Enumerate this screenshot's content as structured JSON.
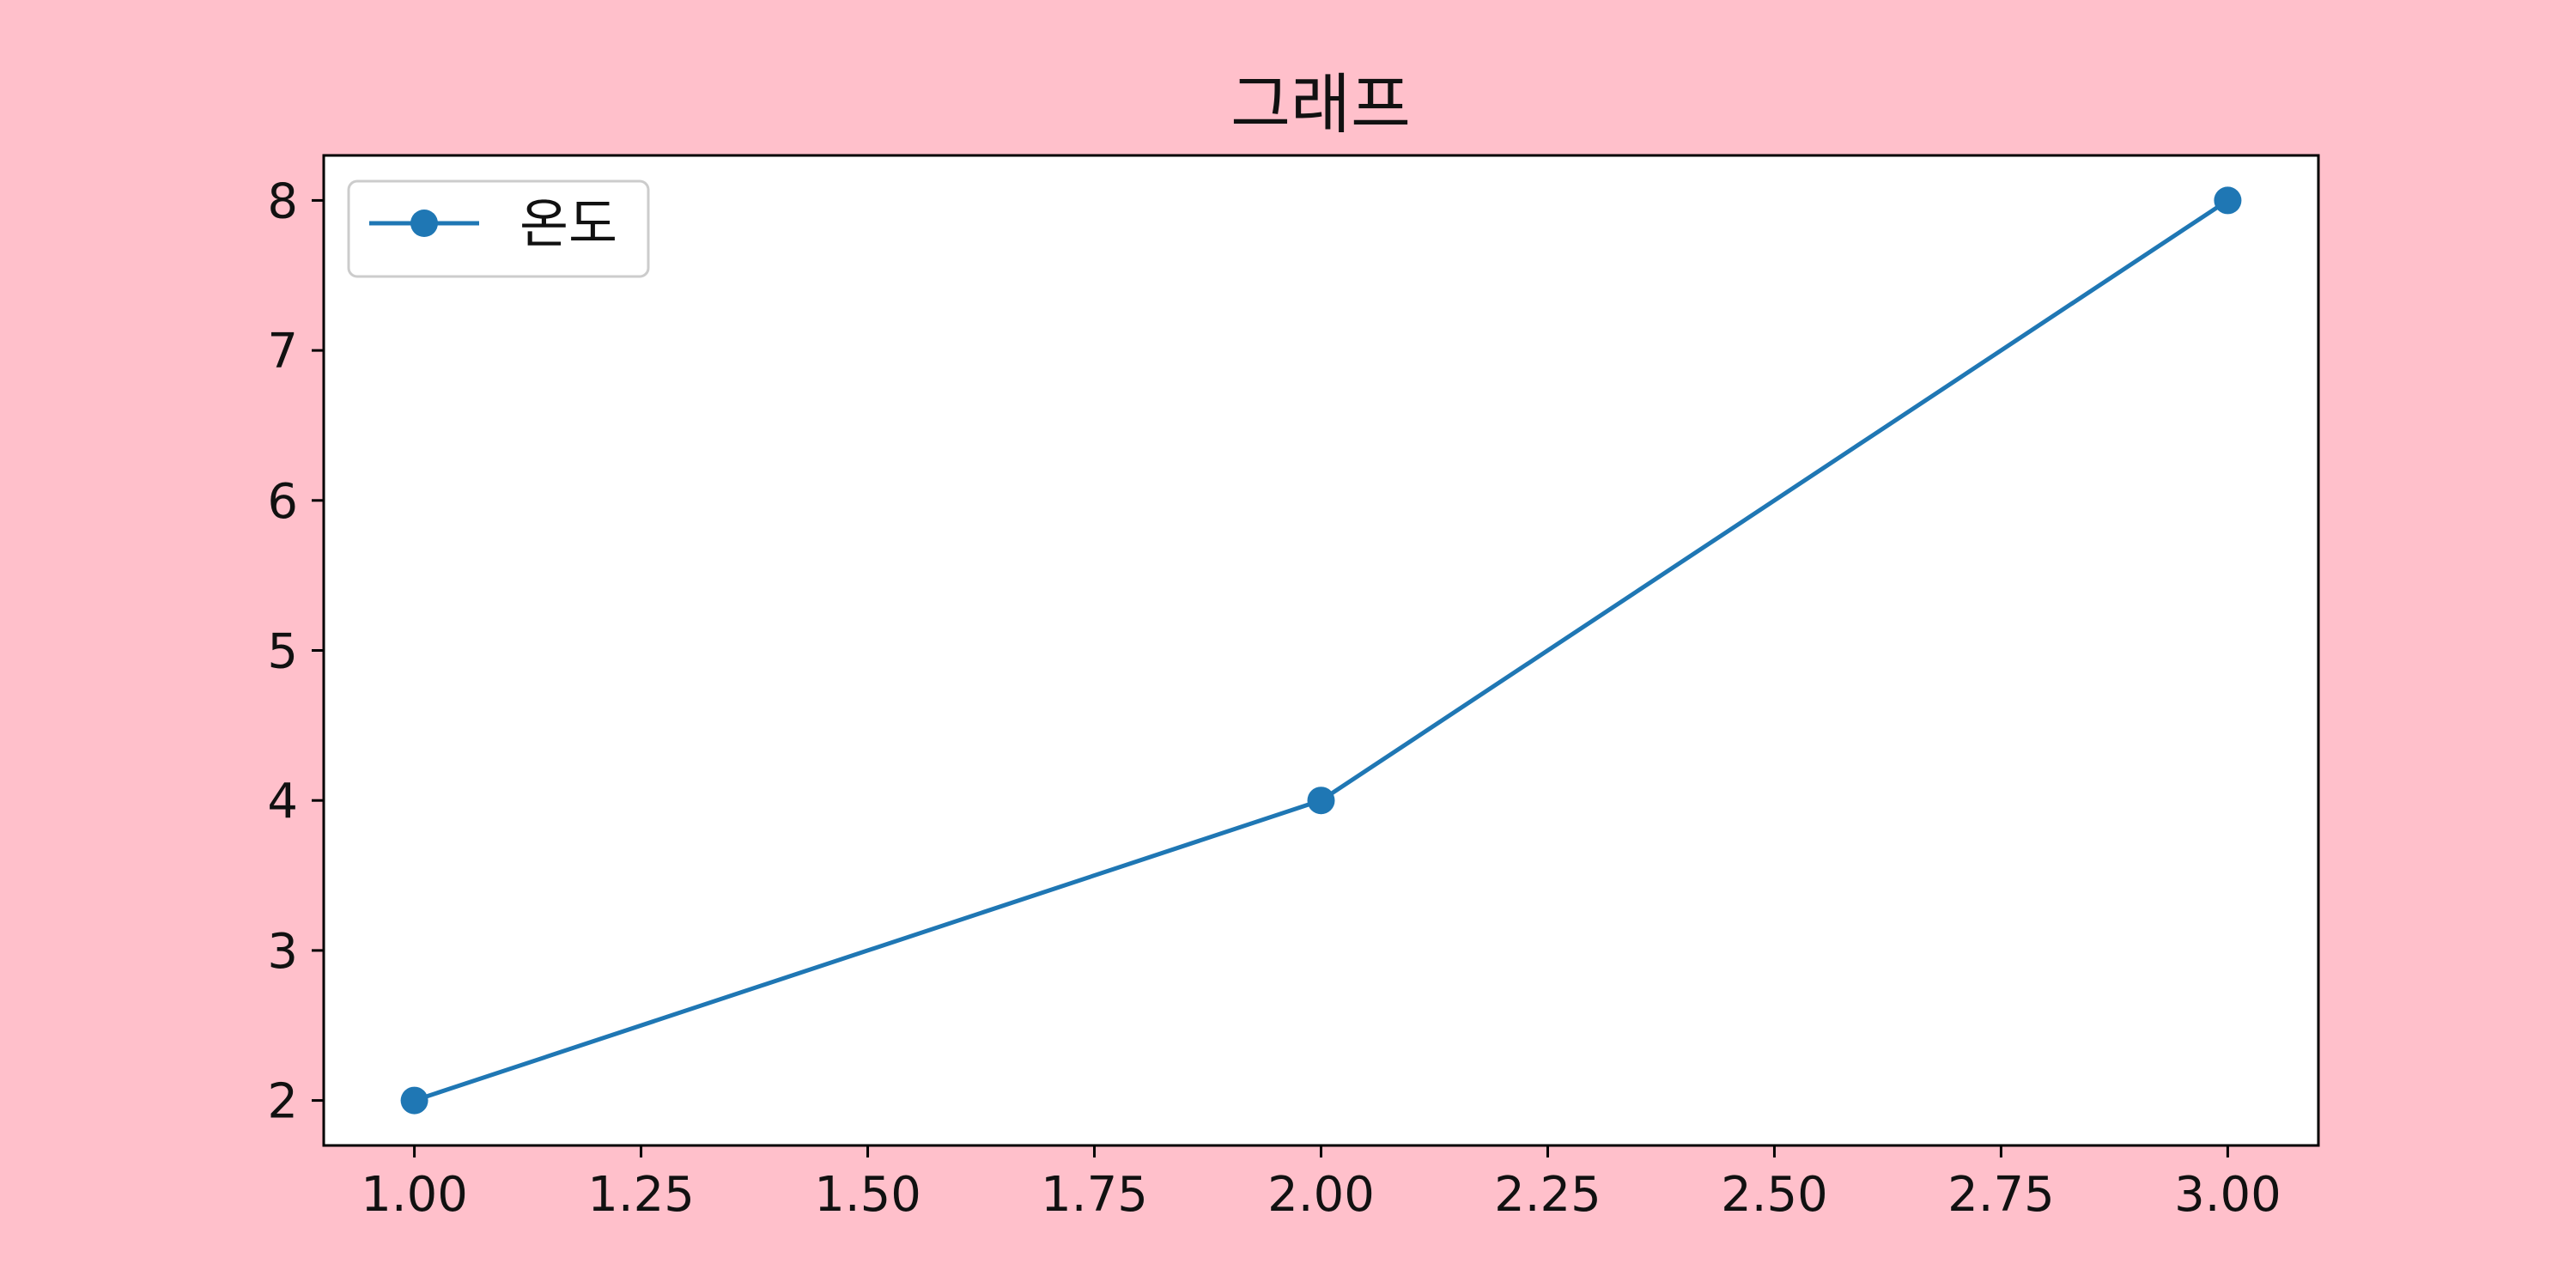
{
  "background_color": "#ffc0cb",
  "chart_data": {
    "type": "line",
    "title": "그래프",
    "xlabel": "",
    "ylabel": "",
    "x": [
      1.0,
      2.0,
      3.0
    ],
    "series": [
      {
        "name": "온도",
        "values": [
          2,
          4,
          8
        ],
        "color": "#1f77b4",
        "marker": "circle"
      }
    ],
    "xlim": [
      0.9,
      3.1
    ],
    "ylim": [
      1.7,
      8.3
    ],
    "xticks": [
      1.0,
      1.25,
      1.5,
      1.75,
      2.0,
      2.25,
      2.5,
      2.75,
      3.0
    ],
    "xtick_labels": [
      "1.00",
      "1.25",
      "1.50",
      "1.75",
      "2.00",
      "2.25",
      "2.50",
      "2.75",
      "3.00"
    ],
    "yticks": [
      2,
      3,
      4,
      5,
      6,
      7,
      8
    ],
    "ytick_labels": [
      "2",
      "3",
      "4",
      "5",
      "6",
      "7",
      "8"
    ],
    "grid": false,
    "legend_position": "top-left"
  }
}
